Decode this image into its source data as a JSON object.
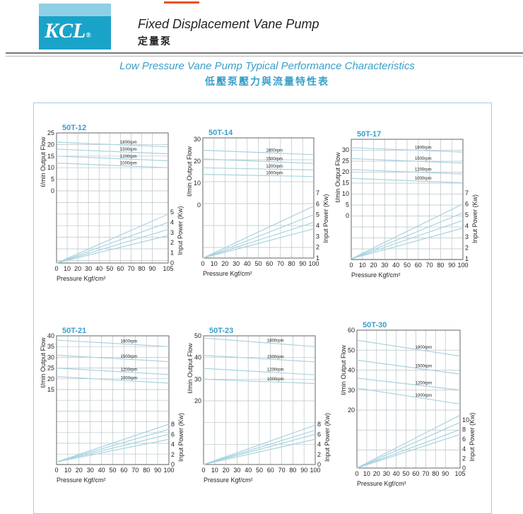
{
  "header": {
    "logo_text": "KCL",
    "title_en": "Fixed Displacement  Vane  Pump",
    "title_zh": "定量泵"
  },
  "subtitle": {
    "en": "Low Pressure Vane Pump Typical Performance Characteristics",
    "zh": "低壓泵壓力與流量特性表"
  },
  "colors": {
    "accent": "#3a9fc9",
    "logo": "#1aa3c9",
    "grid": "#b9c3c7",
    "curve": "#a9d3df"
  },
  "chart_data": [
    {
      "type": "line",
      "title": "50T-12",
      "xlabel": "Pressure Kgf/cm²",
      "ylabel": "ℓ/min Output Flow",
      "y2label": "Input Power (Kw)",
      "xlim": [
        0,
        105
      ],
      "x_ticks": [
        0,
        10,
        20,
        30,
        40,
        50,
        60,
        70,
        80,
        90,
        105
      ],
      "flow_ticks": [
        0,
        5,
        10,
        15,
        20,
        25
      ],
      "power_ticks": [
        0,
        1,
        2,
        3,
        4,
        5
      ],
      "flow_series": [
        {
          "name": "1800rpm",
          "x": [
            0,
            105
          ],
          "y": [
            21,
            19
          ]
        },
        {
          "name": "1500rpm",
          "x": [
            0,
            105
          ],
          "y": [
            18,
            16
          ]
        },
        {
          "name": "1200rpm",
          "x": [
            0,
            105
          ],
          "y": [
            15,
            13
          ]
        },
        {
          "name": "1000rpm",
          "x": [
            0,
            105
          ],
          "y": [
            12,
            10
          ]
        }
      ],
      "power_series": [
        {
          "x": [
            0,
            105
          ],
          "y": [
            0,
            4.8
          ]
        },
        {
          "x": [
            0,
            105
          ],
          "y": [
            0,
            4
          ]
        },
        {
          "x": [
            0,
            105
          ],
          "y": [
            0,
            3.3
          ]
        },
        {
          "x": [
            0,
            105
          ],
          "y": [
            0,
            2.7
          ]
        }
      ]
    },
    {
      "type": "line",
      "title": "50T-14",
      "xlabel": "Pressure Kgf/cm²",
      "ylabel": "ℓ/min Output Flow",
      "y2label": "Input Power (Kw)",
      "xlim": [
        0,
        100
      ],
      "x_ticks": [
        0,
        10,
        20,
        30,
        40,
        50,
        60,
        70,
        80,
        90,
        100
      ],
      "flow_ticks": [
        0,
        10,
        20,
        30
      ],
      "power_ticks": [
        1,
        2,
        3,
        4,
        5,
        6,
        7
      ],
      "flow_series": [
        {
          "name": "1800rpm",
          "x": [
            0,
            100
          ],
          "y": [
            25,
            23
          ]
        },
        {
          "name": "1500rpm",
          "x": [
            0,
            100
          ],
          "y": [
            21,
            19
          ]
        },
        {
          "name": "1200rpm",
          "x": [
            0,
            100
          ],
          "y": [
            17,
            16
          ]
        },
        {
          "name": "1000rpm",
          "x": [
            0,
            100
          ],
          "y": [
            14,
            13
          ]
        }
      ],
      "power_series": [
        {
          "x": [
            0,
            100
          ],
          "y": [
            1,
            5.8
          ]
        },
        {
          "x": [
            0,
            100
          ],
          "y": [
            1,
            5
          ]
        },
        {
          "x": [
            0,
            100
          ],
          "y": [
            1,
            4.3
          ]
        },
        {
          "x": [
            0,
            100
          ],
          "y": [
            1,
            3.7
          ]
        }
      ]
    },
    {
      "type": "line",
      "title": "50T-17",
      "xlabel": "Pressure Kgf/cm²",
      "ylabel": "ℓ/min Output Flow",
      "y2label": "Input Power (Kw)",
      "xlim": [
        0,
        100
      ],
      "x_ticks": [
        0,
        10,
        20,
        30,
        40,
        50,
        60,
        70,
        80,
        90,
        100
      ],
      "flow_ticks": [
        0,
        5,
        10,
        15,
        20,
        25,
        30
      ],
      "power_ticks": [
        1,
        2,
        3,
        4,
        5,
        6,
        7
      ],
      "flow_series": [
        {
          "name": "1800rpm",
          "x": [
            0,
            100
          ],
          "y": [
            31,
            29
          ]
        },
        {
          "name": "1500rpm",
          "x": [
            0,
            100
          ],
          "y": [
            26,
            24
          ]
        },
        {
          "name": "1200rpm",
          "x": [
            0,
            100
          ],
          "y": [
            21,
            19
          ]
        },
        {
          "name": "1000rpm",
          "x": [
            0,
            100
          ],
          "y": [
            17,
            15
          ]
        }
      ],
      "power_series": [
        {
          "x": [
            0,
            100
          ],
          "y": [
            1,
            6
          ]
        },
        {
          "x": [
            0,
            100
          ],
          "y": [
            1,
            5.2
          ]
        },
        {
          "x": [
            0,
            100
          ],
          "y": [
            1,
            4.5
          ]
        },
        {
          "x": [
            0,
            100
          ],
          "y": [
            1,
            3.8
          ]
        }
      ]
    },
    {
      "type": "line",
      "title": "50T-21",
      "xlabel": "Pressure Kgf/cm²",
      "ylabel": "ℓ/min Output Flow",
      "y2label": "Input Power (Kw)",
      "xlim": [
        0,
        100
      ],
      "x_ticks": [
        0,
        10,
        20,
        30,
        40,
        50,
        60,
        70,
        80,
        90,
        100
      ],
      "flow_ticks": [
        15,
        20,
        25,
        30,
        35,
        40
      ],
      "power_ticks": [
        0,
        2,
        4,
        6,
        8
      ],
      "flow_series": [
        {
          "name": "1800rpm",
          "x": [
            0,
            100
          ],
          "y": [
            38,
            35
          ]
        },
        {
          "name": "1500rpm",
          "x": [
            0,
            100
          ],
          "y": [
            31,
            28
          ]
        },
        {
          "name": "1200rpm",
          "x": [
            0,
            100
          ],
          "y": [
            25,
            22
          ]
        },
        {
          "name": "1000rpm",
          "x": [
            0,
            100
          ],
          "y": [
            21,
            18
          ]
        }
      ],
      "power_series": [
        {
          "x": [
            0,
            100
          ],
          "y": [
            0.5,
            8
          ]
        },
        {
          "x": [
            0,
            100
          ],
          "y": [
            0.5,
            7
          ]
        },
        {
          "x": [
            0,
            100
          ],
          "y": [
            0.5,
            6
          ]
        },
        {
          "x": [
            0,
            100
          ],
          "y": [
            0.5,
            5
          ]
        }
      ]
    },
    {
      "type": "line",
      "title": "50T-23",
      "xlabel": "Pressure Kgf/cm²",
      "ylabel": "ℓ/min Output Flow",
      "y2label": "Input Power (Kw)",
      "xlim": [
        0,
        100
      ],
      "x_ticks": [
        0,
        10,
        20,
        30,
        40,
        50,
        60,
        70,
        80,
        90,
        100
      ],
      "flow_ticks": [
        20,
        30,
        40,
        50
      ],
      "power_ticks": [
        0,
        2,
        4,
        6,
        8
      ],
      "flow_series": [
        {
          "name": "1800rpm",
          "x": [
            0,
            100
          ],
          "y": [
            49,
            45
          ]
        },
        {
          "name": "1500rpm",
          "x": [
            0,
            100
          ],
          "y": [
            41,
            38
          ]
        },
        {
          "name": "1200rpm",
          "x": [
            0,
            100
          ],
          "y": [
            35,
            32
          ]
        },
        {
          "name": "1000rpm",
          "x": [
            0,
            100
          ],
          "y": [
            30,
            28
          ]
        }
      ],
      "power_series": [
        {
          "x": [
            0,
            100
          ],
          "y": [
            0,
            7.8
          ]
        },
        {
          "x": [
            0,
            100
          ],
          "y": [
            0,
            6.8
          ]
        },
        {
          "x": [
            0,
            100
          ],
          "y": [
            0,
            6
          ]
        },
        {
          "x": [
            0,
            100
          ],
          "y": [
            0,
            5
          ]
        }
      ]
    },
    {
      "type": "line",
      "title": "50T-30",
      "xlabel": "Pressure Kgf/cm²",
      "ylabel": "ℓ/min Output Flow",
      "y2label": "Input Power (Kw)",
      "xlim": [
        0,
        105
      ],
      "x_ticks": [
        0,
        10,
        20,
        30,
        40,
        50,
        60,
        70,
        80,
        90,
        105
      ],
      "flow_ticks": [
        20,
        30,
        40,
        50,
        60
      ],
      "power_ticks": [
        0,
        2,
        4,
        6,
        8,
        10
      ],
      "flow_series": [
        {
          "name": "1800rpm",
          "x": [
            0,
            105
          ],
          "y": [
            55,
            47
          ]
        },
        {
          "name": "1500rpm",
          "x": [
            0,
            105
          ],
          "y": [
            45,
            38
          ]
        },
        {
          "name": "1200rpm",
          "x": [
            0,
            105
          ],
          "y": [
            36,
            30
          ]
        },
        {
          "name": "1000rpm",
          "x": [
            0,
            105
          ],
          "y": [
            31,
            23
          ]
        }
      ],
      "power_series": [
        {
          "x": [
            0,
            105
          ],
          "y": [
            0,
            11
          ]
        },
        {
          "x": [
            0,
            105
          ],
          "y": [
            0,
            9.5
          ]
        },
        {
          "x": [
            0,
            105
          ],
          "y": [
            0,
            8
          ]
        },
        {
          "x": [
            0,
            105
          ],
          "y": [
            0,
            7
          ]
        }
      ]
    }
  ]
}
